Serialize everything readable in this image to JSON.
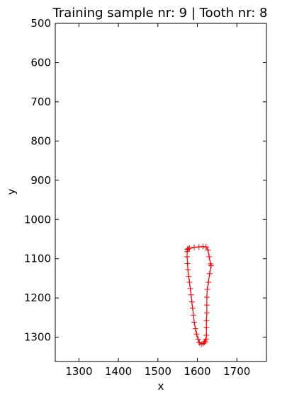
{
  "chart_data": {
    "type": "line",
    "title": "Training sample nr: 9 | Tooth nr: 8",
    "xlabel": "x",
    "ylabel": "y",
    "xlim": [
      1240,
      1775
    ],
    "ylim": [
      500,
      1362
    ],
    "y_inverted": true,
    "grid": false,
    "legend": "none",
    "x_ticks": [
      1300,
      1400,
      1500,
      1600,
      1700
    ],
    "y_ticks": [
      500,
      600,
      700,
      800,
      900,
      1000,
      1100,
      1200,
      1300
    ],
    "series": [
      {
        "color": "#ff0000",
        "marker": "+",
        "closed": true,
        "x": [
          1580,
          1592,
          1604,
          1614,
          1622,
          1627,
          1630,
          1633,
          1635,
          1631,
          1628,
          1625,
          1624,
          1624,
          1624,
          1623,
          1623,
          1623,
          1622,
          1620,
          1618,
          1615,
          1610,
          1605,
          1602,
          1598,
          1595,
          1592,
          1590,
          1588,
          1586,
          1584,
          1582,
          1580,
          1578,
          1576,
          1575,
          1574,
          1574,
          1575,
          1577
        ],
        "y": [
          1073,
          1071,
          1070,
          1069,
          1070,
          1078,
          1095,
          1113,
          1118,
          1138,
          1160,
          1178,
          1198,
          1218,
          1238,
          1258,
          1275,
          1295,
          1305,
          1310,
          1313,
          1316,
          1318,
          1314,
          1305,
          1292,
          1278,
          1262,
          1244,
          1226,
          1210,
          1192,
          1176,
          1160,
          1145,
          1128,
          1112,
          1095,
          1082,
          1076,
          1074
        ]
      }
    ]
  }
}
